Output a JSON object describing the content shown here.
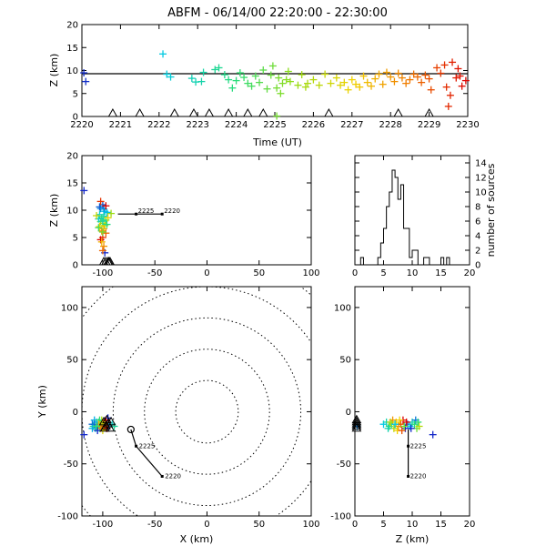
{
  "title": "ABFM - 06/14/00 22:20:00 - 22:30:00",
  "chart_data": [
    {
      "type": "scatter",
      "panel": "time-height",
      "xlabel": "Time (UT)",
      "ylabel": "Z (km)",
      "xlim": [
        2220,
        2230
      ],
      "ylim": [
        0,
        20
      ],
      "xticks": [
        "2220",
        "2221",
        "2222",
        "2223",
        "2224",
        "2225",
        "2226",
        "2227",
        "2228",
        "2229",
        "2230"
      ],
      "yticks": [
        "0",
        "5",
        "10",
        "15",
        "20"
      ],
      "reference_line_y": 9.3,
      "stations_x": [
        2220.8,
        2221.5,
        2222.4,
        2222.9,
        2223.3,
        2223.8,
        2224.3,
        2224.7,
        2226.4,
        2228.2,
        2229.0
      ],
      "points": [
        [
          2220.05,
          9.5
        ],
        [
          2220.1,
          7.6
        ],
        [
          2222.1,
          13.6
        ],
        [
          2222.2,
          9.2
        ],
        [
          2222.3,
          8.6
        ],
        [
          2222.85,
          8.3
        ],
        [
          2222.95,
          7.5
        ],
        [
          2223.1,
          7.6
        ],
        [
          2223.15,
          9.6
        ],
        [
          2223.45,
          10.2
        ],
        [
          2223.55,
          10.6
        ],
        [
          2223.7,
          9.1
        ],
        [
          2223.8,
          8.0
        ],
        [
          2223.9,
          6.2
        ],
        [
          2224.0,
          7.8
        ],
        [
          2224.1,
          9.5
        ],
        [
          2224.2,
          8.5
        ],
        [
          2224.3,
          7.2
        ],
        [
          2224.4,
          6.6
        ],
        [
          2224.5,
          8.8
        ],
        [
          2224.6,
          7.4
        ],
        [
          2224.7,
          10.1
        ],
        [
          2224.8,
          6.0
        ],
        [
          2224.9,
          9.0
        ],
        [
          2224.95,
          11.0
        ],
        [
          2225.05,
          6.2
        ],
        [
          2225.1,
          8.4
        ],
        [
          2225.15,
          5.0
        ],
        [
          2225.2,
          7.2
        ],
        [
          2225.3,
          8.0
        ],
        [
          2225.35,
          9.8
        ],
        [
          2225.4,
          7.6
        ],
        [
          2225.6,
          6.8
        ],
        [
          2225.7,
          9.1
        ],
        [
          2225.8,
          6.4
        ],
        [
          2225.85,
          7.2
        ],
        [
          2226.0,
          8.0
        ],
        [
          2226.15,
          6.8
        ],
        [
          2226.3,
          9.2
        ],
        [
          2226.45,
          7.2
        ],
        [
          2226.6,
          8.4
        ],
        [
          2226.7,
          6.8
        ],
        [
          2226.8,
          7.4
        ],
        [
          2226.9,
          5.8
        ],
        [
          2227.0,
          8.0
        ],
        [
          2227.1,
          7.0
        ],
        [
          2227.2,
          6.4
        ],
        [
          2227.3,
          8.8
        ],
        [
          2227.4,
          7.4
        ],
        [
          2227.5,
          6.6
        ],
        [
          2227.6,
          8.2
        ],
        [
          2227.7,
          9.2
        ],
        [
          2227.8,
          7.0
        ],
        [
          2227.9,
          9.6
        ],
        [
          2228.0,
          8.6
        ],
        [
          2228.1,
          7.6
        ],
        [
          2228.2,
          9.4
        ],
        [
          2228.3,
          8.4
        ],
        [
          2228.4,
          7.2
        ],
        [
          2228.5,
          8.0
        ],
        [
          2228.6,
          9.2
        ],
        [
          2228.7,
          8.6
        ],
        [
          2228.8,
          7.4
        ],
        [
          2228.9,
          9.0
        ],
        [
          2229.0,
          8.2
        ],
        [
          2229.05,
          5.8
        ],
        [
          2229.2,
          10.6
        ],
        [
          2229.3,
          9.4
        ],
        [
          2229.4,
          11.2
        ],
        [
          2229.45,
          6.4
        ],
        [
          2229.5,
          2.2
        ],
        [
          2229.55,
          4.6
        ],
        [
          2229.6,
          11.8
        ],
        [
          2229.7,
          8.4
        ],
        [
          2229.75,
          10.4
        ],
        [
          2229.8,
          8.8
        ],
        [
          2229.85,
          6.6
        ],
        [
          2229.95,
          7.8
        ],
        [
          2225.05,
          0.1
        ]
      ]
    },
    {
      "type": "scatter",
      "panel": "x-height",
      "xlabel": "",
      "ylabel": "Z (km)",
      "xlim": [
        -120,
        100
      ],
      "ylim": [
        0,
        20
      ],
      "xticks": [
        "-100",
        "-50",
        "0",
        "50",
        "100"
      ],
      "yticks": [
        "0",
        "5",
        "10",
        "15",
        "20"
      ],
      "track": [
        [
          -43,
          9.3
        ],
        [
          -68,
          9.3
        ]
      ],
      "track_labels": [
        "2220",
        "2225"
      ],
      "stations_x": [
        -99,
        -97,
        -95,
        -94,
        -93
      ],
      "points": [
        [
          -118,
          13.6
        ],
        [
          -100,
          11.0
        ],
        [
          -102,
          10.3
        ],
        [
          -98,
          9.8
        ],
        [
          -103,
          9.2
        ],
        [
          -99,
          8.9
        ],
        [
          -101,
          8.6
        ],
        [
          -97,
          8.2
        ],
        [
          -102,
          7.9
        ],
        [
          -100,
          7.6
        ],
        [
          -98,
          7.2
        ],
        [
          -103,
          7.0
        ],
        [
          -99,
          6.6
        ],
        [
          -101,
          6.2
        ],
        [
          -97,
          5.8
        ],
        [
          -100,
          5.0
        ],
        [
          -102,
          4.6
        ],
        [
          -98,
          2.2
        ],
        [
          -103,
          10.6
        ],
        [
          -99,
          10.2
        ],
        [
          -96,
          9.6
        ],
        [
          -104,
          8.4
        ],
        [
          -100,
          8.0
        ],
        [
          -96,
          7.4
        ],
        [
          -104,
          6.8
        ],
        [
          -100,
          6.0
        ],
        [
          -92,
          9.4
        ],
        [
          -106,
          9.0
        ],
        [
          -95,
          8.6
        ],
        [
          -101,
          4.2
        ],
        [
          -99,
          3.4
        ],
        [
          -100,
          2.6
        ],
        [
          -102,
          11.6
        ],
        [
          -97,
          10.8
        ]
      ]
    },
    {
      "type": "bar",
      "panel": "histogram",
      "xlabel": "",
      "ylabel": "number of sources",
      "xlim": [
        0,
        20
      ],
      "ylim": [
        0,
        15
      ],
      "xticks": [
        "0",
        "5",
        "10",
        "15",
        "20"
      ],
      "yticks": [
        "0",
        "2",
        "4",
        "6",
        "8",
        "10",
        "12",
        "14"
      ],
      "bin_width": 0.5,
      "bin_start": 0,
      "values": [
        0,
        0,
        1,
        0,
        0,
        0,
        0,
        0,
        1,
        3,
        5,
        8,
        10,
        13,
        12,
        9,
        11,
        5,
        5,
        1,
        2,
        2,
        0,
        0,
        1,
        1,
        0,
        0,
        0,
        0,
        1,
        0,
        1,
        0,
        0,
        0,
        0,
        0,
        0,
        0
      ]
    },
    {
      "type": "scatter",
      "panel": "plan-view",
      "xlabel": "X (km)",
      "ylabel": "Y (km)",
      "xlim": [
        -120,
        100
      ],
      "ylim": [
        -100,
        120
      ],
      "xticks": [
        "-100",
        "-50",
        "0",
        "50",
        "100"
      ],
      "yticks": [
        "-100",
        "-50",
        "0",
        "50",
        "100"
      ],
      "range_rings_km": [
        30,
        60,
        90,
        120,
        150
      ],
      "track": [
        [
          -43,
          -62
        ],
        [
          -68,
          -33
        ],
        [
          -73,
          -17
        ]
      ],
      "track_labels": [
        "2220",
        "2225"
      ],
      "stations": [
        [
          -99,
          -10
        ],
        [
          -97,
          -14
        ],
        [
          -95,
          -12
        ],
        [
          -93,
          -16
        ],
        [
          -92,
          -10
        ],
        [
          -98,
          -16
        ],
        [
          -96,
          -8
        ]
      ],
      "points": [
        [
          -118,
          -22
        ],
        [
          -110,
          -12
        ],
        [
          -108,
          -8
        ],
        [
          -105,
          -14
        ],
        [
          -104,
          -10
        ],
        [
          -103,
          -16
        ],
        [
          -102,
          -12
        ],
        [
          -101,
          -8
        ],
        [
          -100,
          -18
        ],
        [
          -99,
          -14
        ],
        [
          -98,
          -10
        ],
        [
          -97,
          -12
        ],
        [
          -96,
          -16
        ],
        [
          -95,
          -6
        ],
        [
          -94,
          -14
        ],
        [
          -106,
          -10
        ],
        [
          -107,
          -16
        ],
        [
          -109,
          -14
        ],
        [
          -103,
          -8
        ],
        [
          -101,
          -14
        ],
        [
          -100,
          -12
        ],
        [
          -100,
          -10
        ],
        [
          -104,
          -12
        ],
        [
          -102,
          -16
        ],
        [
          -98,
          -14
        ],
        [
          -97,
          -8
        ],
        [
          -105,
          -18
        ],
        [
          -108,
          -12
        ],
        [
          -110,
          -16
        ],
        [
          -91,
          -12
        ],
        [
          -89,
          -14
        ],
        [
          -106,
          -14
        ]
      ]
    },
    {
      "type": "scatter",
      "panel": "z-y",
      "xlabel": "Z (km)",
      "ylabel": "",
      "xlim": [
        0,
        20
      ],
      "ylim": [
        -100,
        120
      ],
      "xticks": [
        "0",
        "5",
        "10",
        "15",
        "20"
      ],
      "yticks": [
        "-100",
        "-50",
        "0",
        "50",
        "100"
      ],
      "track": [
        [
          9.3,
          -62
        ],
        [
          9.3,
          -33
        ],
        [
          9.3,
          -17
        ]
      ],
      "track_labels": [
        "2220",
        "2225"
      ],
      "stations_y": [
        -10,
        -12,
        -14,
        -16,
        -8
      ],
      "points": [
        [
          13.6,
          -22
        ],
        [
          0.4,
          -14
        ],
        [
          5.0,
          -12
        ],
        [
          5.5,
          -10
        ],
        [
          6.0,
          -14
        ],
        [
          6.4,
          -12
        ],
        [
          6.8,
          -16
        ],
        [
          7.2,
          -10
        ],
        [
          7.6,
          -14
        ],
        [
          8.0,
          -12
        ],
        [
          8.4,
          -8
        ],
        [
          8.8,
          -16
        ],
        [
          9.2,
          -12
        ],
        [
          9.6,
          -14
        ],
        [
          10.0,
          -10
        ],
        [
          10.4,
          -12
        ],
        [
          10.8,
          -16
        ],
        [
          11.2,
          -14
        ],
        [
          7.4,
          -18
        ],
        [
          6.6,
          -8
        ],
        [
          8.2,
          -18
        ],
        [
          9.0,
          -10
        ],
        [
          9.8,
          -16
        ],
        [
          10.6,
          -8
        ],
        [
          7.0,
          -12
        ],
        [
          5.8,
          -16
        ],
        [
          11.0,
          -10
        ],
        [
          8.6,
          -14
        ],
        [
          6.2,
          -10
        ],
        [
          7.8,
          -8
        ]
      ]
    }
  ]
}
